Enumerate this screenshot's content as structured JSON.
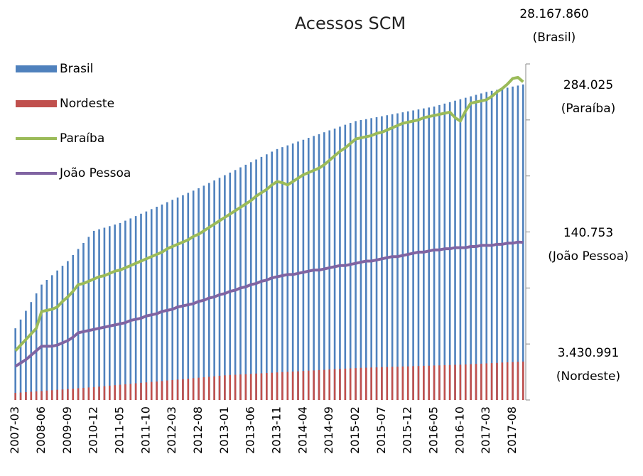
{
  "chart_data": {
    "type": "bar",
    "title": "Acessos SCM",
    "categories": [
      "2007-03",
      null,
      null,
      null,
      null,
      "2008-06",
      null,
      null,
      null,
      null,
      "2009-09",
      null,
      null,
      null,
      null,
      "2010-12",
      null,
      null,
      null,
      null,
      "2011-05",
      null,
      null,
      null,
      null,
      "2011-10",
      null,
      null,
      null,
      null,
      "2012-03",
      null,
      null,
      null,
      null,
      "2012-08",
      null,
      null,
      null,
      null,
      "2013-01",
      null,
      null,
      null,
      null,
      "2013-06",
      null,
      null,
      null,
      null,
      "2013-11",
      null,
      null,
      null,
      null,
      "2014-04",
      null,
      null,
      null,
      null,
      "2014-09",
      null,
      null,
      null,
      null,
      "2015-02",
      null,
      null,
      null,
      null,
      "2015-07",
      null,
      null,
      null,
      null,
      "2015-12",
      null,
      null,
      null,
      null,
      "2016-05",
      null,
      null,
      null,
      null,
      "2016-10",
      null,
      null,
      null,
      null,
      "2017-03",
      null,
      null,
      null,
      null,
      "2017-08",
      null,
      null
    ],
    "ylim": [
      0,
      30000000
    ],
    "yticks": [
      0,
      5000000,
      10000000,
      15000000,
      20000000,
      25000000,
      30000000
    ],
    "y2lim": [
      0,
      300000
    ],
    "legend": "top-left",
    "series": [
      {
        "name": "Brasil",
        "type": "bar",
        "color": "#4f81bd",
        "values": [
          6400000,
          7180000,
          7960000,
          8740000,
          9520000,
          10300000,
          10720000,
          11140000,
          11560000,
          11980000,
          12400000,
          12940000,
          13480000,
          14020000,
          14560000,
          15100000,
          15240000,
          15380000,
          15520000,
          15660000,
          15800000,
          16010000,
          16210000,
          16420000,
          16630000,
          16830000,
          17040000,
          17250000,
          17450000,
          17660000,
          17870000,
          18070000,
          18280000,
          18490000,
          18690000,
          18900000,
          19130000,
          19370000,
          19600000,
          19830000,
          20070000,
          20300000,
          20530000,
          20770000,
          21000000,
          21230000,
          21470000,
          21700000,
          21930000,
          22170000,
          22400000,
          22570000,
          22730000,
          22900000,
          23070000,
          23230000,
          23400000,
          23570000,
          23730000,
          23900000,
          24070000,
          24230000,
          24400000,
          24570000,
          24730000,
          24900000,
          24990000,
          25070000,
          25160000,
          25250000,
          25330000,
          25420000,
          25510000,
          25590000,
          25680000,
          25770000,
          25850000,
          25940000,
          26030000,
          26110000,
          26200000,
          26330000,
          26460000,
          26590000,
          26720000,
          26850000,
          26980000,
          27110000,
          27240000,
          27370000,
          27500000,
          27600000,
          27690000,
          27790000,
          27880000,
          27980000,
          28070000,
          28167860
        ]
      },
      {
        "name": "Nordeste",
        "type": "bar",
        "color": "#c0504d",
        "values": [
          630000,
          660000,
          700000,
          730000,
          770000,
          800000,
          840000,
          870000,
          910000,
          940000,
          980000,
          1010000,
          1050000,
          1080000,
          1120000,
          1150000,
          1190000,
          1230000,
          1280000,
          1320000,
          1360000,
          1400000,
          1440000,
          1490000,
          1530000,
          1570000,
          1610000,
          1650000,
          1690000,
          1740000,
          1780000,
          1820000,
          1860000,
          1900000,
          1950000,
          1990000,
          2030000,
          2070000,
          2110000,
          2160000,
          2200000,
          2230000,
          2250000,
          2280000,
          2300000,
          2330000,
          2360000,
          2380000,
          2410000,
          2430000,
          2460000,
          2490000,
          2510000,
          2540000,
          2560000,
          2590000,
          2620000,
          2640000,
          2670000,
          2690000,
          2720000,
          2750000,
          2770000,
          2800000,
          2820000,
          2850000,
          2870000,
          2880000,
          2900000,
          2910000,
          2930000,
          2940000,
          2960000,
          2970000,
          2990000,
          3000000,
          3020000,
          3030000,
          3050000,
          3060000,
          3080000,
          3090000,
          3110000,
          3120000,
          3140000,
          3150000,
          3170000,
          3200000,
          3220000,
          3240000,
          3270000,
          3290000,
          3310000,
          3340000,
          3360000,
          3380000,
          3410000,
          3430991
        ]
      },
      {
        "name": "Paraíba",
        "type": "line",
        "axis": "y2",
        "color": "#9bbb59",
        "values": [
          44000,
          49000,
          54000,
          59000,
          64000,
          79000,
          80000,
          81000,
          83000,
          88000,
          92000,
          97000,
          103000,
          104000,
          106000,
          108000,
          110000,
          111000,
          113000,
          115000,
          116000,
          118000,
          120000,
          122000,
          124000,
          126000,
          128000,
          130000,
          132000,
          135000,
          137000,
          139000,
          141000,
          143000,
          146000,
          148000,
          151000,
          154000,
          157000,
          160000,
          163000,
          166000,
          169000,
          172000,
          175000,
          178000,
          182000,
          185000,
          188000,
          192000,
          195000,
          194000,
          192000,
          195000,
          198000,
          201000,
          203000,
          205000,
          207000,
          210000,
          214000,
          218000,
          222000,
          225000,
          229000,
          233000,
          234000,
          235000,
          236000,
          238000,
          239000,
          241000,
          243000,
          245000,
          247000,
          248000,
          249000,
          250000,
          252000,
          253000,
          254000,
          255000,
          256000,
          257000,
          252000,
          249000,
          258000,
          265000,
          266000,
          267000,
          268000,
          271000,
          275000,
          278000,
          282000,
          287000,
          288000,
          284025
        ]
      },
      {
        "name": "João Pessoa",
        "type": "line",
        "axis": "y2",
        "color": "#8064a2",
        "values": [
          30000,
          33000,
          36000,
          40000,
          44000,
          48000,
          48000,
          48000,
          49000,
          51000,
          53000,
          56000,
          60000,
          61000,
          62000,
          63000,
          64000,
          65000,
          66000,
          67000,
          68000,
          69000,
          71000,
          72000,
          73000,
          75000,
          76000,
          77000,
          79000,
          80000,
          81000,
          83000,
          84000,
          85000,
          86000,
          88000,
          89000,
          91000,
          92000,
          94000,
          95000,
          97000,
          98000,
          100000,
          101000,
          103000,
          104000,
          106000,
          107000,
          109000,
          110000,
          111000,
          112000,
          112000,
          113000,
          114000,
          115000,
          116000,
          116000,
          117000,
          118000,
          119000,
          120000,
          120000,
          121000,
          122000,
          123000,
          124000,
          124000,
          125000,
          126000,
          127000,
          128000,
          128000,
          129000,
          130000,
          131000,
          132000,
          132000,
          133000,
          134000,
          134000,
          135000,
          135000,
          136000,
          136000,
          136000,
          137000,
          137000,
          138000,
          138000,
          138000,
          139000,
          139000,
          140000,
          140000,
          141000,
          140753
        ]
      }
    ],
    "annotations": [
      {
        "value": "28.167.860",
        "label": "(Brasil)"
      },
      {
        "value": "284.025",
        "label": "(Paraíba)"
      },
      {
        "value": "140.753",
        "label": "(João Pessoa)"
      },
      {
        "value": "3.430.991",
        "label": "(Nordeste)"
      }
    ]
  }
}
